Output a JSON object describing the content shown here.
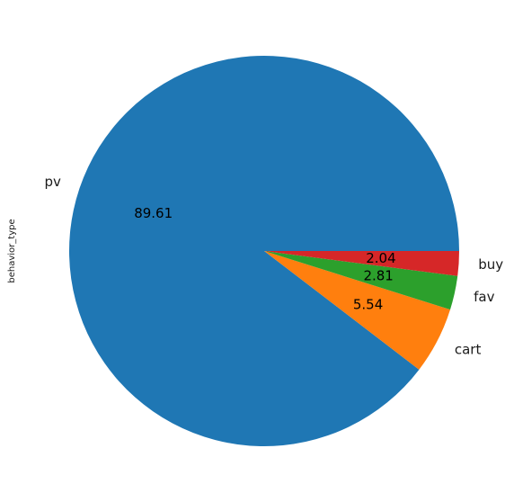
{
  "chart_data": {
    "type": "pie",
    "ylabel": "behavior_type",
    "labels": [
      "pv",
      "cart",
      "fav",
      "buy"
    ],
    "values": [
      89.61,
      5.54,
      2.81,
      2.04
    ],
    "value_labels": [
      "89.61",
      "5.54",
      "2.81",
      "2.04"
    ],
    "colors": [
      "#1f77b4",
      "#ff7f0e",
      "#2ca02c",
      "#d62728"
    ],
    "start_angle_deg": 0,
    "direction": "counterclockwise",
    "legend": "none"
  }
}
